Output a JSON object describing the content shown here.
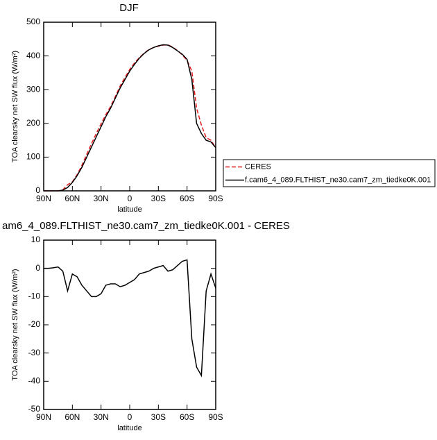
{
  "chart_data": [
    {
      "type": "line",
      "title": "DJF",
      "xlabel": "latitude",
      "ylabel": "TOA clearsky net SW flux (W/m²)",
      "x": [
        90,
        85,
        80,
        75,
        70,
        65,
        60,
        55,
        50,
        45,
        40,
        35,
        30,
        25,
        20,
        15,
        10,
        5,
        0,
        -5,
        -10,
        -15,
        -20,
        -25,
        -30,
        -35,
        -40,
        -45,
        -50,
        -55,
        -60,
        -65,
        -70,
        -75,
        -80,
        -85,
        -90
      ],
      "xlim": [
        90,
        -90
      ],
      "xticks": [
        {
          "value": 90,
          "label": "90N"
        },
        {
          "value": 60,
          "label": "60N"
        },
        {
          "value": 30,
          "label": "30N"
        },
        0,
        {
          "value": -30,
          "label": "30S"
        },
        {
          "value": -60,
          "label": "60S"
        },
        {
          "value": -90,
          "label": "90S"
        }
      ],
      "ylim": [
        0,
        500
      ],
      "yticks": [
        0,
        100,
        200,
        300,
        400,
        500
      ],
      "legend": "right",
      "series": [
        {
          "name": "CERES",
          "color": "#e41a1c",
          "dash": true,
          "values": [
            0,
            0,
            0,
            0,
            3,
            18,
            27,
            48,
            76,
            108,
            140,
            170,
            199,
            226,
            250,
            280,
            311,
            336,
            360,
            379,
            395,
            408,
            419,
            425,
            429,
            432,
            433,
            426,
            416,
            403,
            387,
            355,
            245,
            195,
            158,
            150,
            128
          ]
        },
        {
          "name": "f.cam6_4_089.FLTHIST_ne30.cam7_zm_tiedke0K.001",
          "color": "#000000",
          "dash": false,
          "values": [
            0,
            0,
            0,
            0,
            2,
            10,
            25,
            45,
            70,
            100,
            130,
            160,
            190,
            220,
            245,
            275,
            305,
            330,
            355,
            375,
            393,
            407,
            418,
            425,
            430,
            433,
            432,
            425,
            415,
            405,
            390,
            330,
            200,
            170,
            150,
            145,
            128
          ]
        }
      ]
    },
    {
      "type": "line",
      "title": "am6_4_089.FLTHIST_ne30.cam7_zm_tiedke0K.001 - CERES",
      "xlabel": "latitude",
      "ylabel": "TOA clearsky net SW flux (W/m²)",
      "x": [
        90,
        85,
        80,
        75,
        70,
        65,
        60,
        55,
        50,
        45,
        40,
        35,
        30,
        25,
        20,
        15,
        10,
        5,
        0,
        -5,
        -10,
        -15,
        -20,
        -25,
        -30,
        -35,
        -40,
        -45,
        -50,
        -55,
        -60,
        -65,
        -70,
        -75,
        -80,
        -85,
        -90
      ],
      "xlim": [
        90,
        -90
      ],
      "xticks": [
        {
          "value": 90,
          "label": "90N"
        },
        {
          "value": 60,
          "label": "60N"
        },
        {
          "value": 30,
          "label": "30N"
        },
        0,
        {
          "value": -30,
          "label": "30S"
        },
        {
          "value": -60,
          "label": "60S"
        },
        {
          "value": -90,
          "label": "90S"
        }
      ],
      "ylim": [
        -50,
        10
      ],
      "yticks": [
        -50,
        -40,
        -30,
        -20,
        -10,
        0,
        10
      ],
      "color": "#000000",
      "values": [
        0,
        0,
        0.2,
        0.5,
        -1,
        -8,
        -2,
        -3,
        -6,
        -8,
        -10,
        -10,
        -9,
        -6,
        -5.5,
        -5.5,
        -6.5,
        -6,
        -5,
        -4,
        -2,
        -1.5,
        -1,
        0,
        0.5,
        1,
        -1,
        -0.5,
        1,
        2.5,
        3,
        -25,
        -35,
        -38,
        -8,
        -2,
        -7
      ]
    }
  ]
}
